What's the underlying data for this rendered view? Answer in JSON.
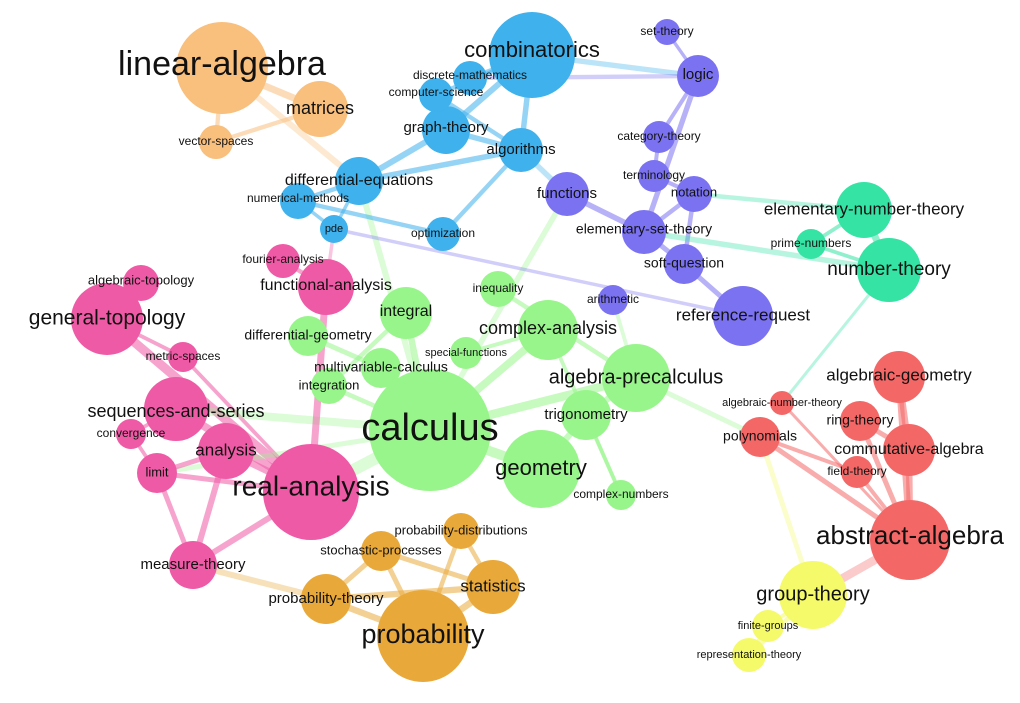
{
  "clusters": [
    {
      "id": "linear",
      "color": "#f9bf7d"
    },
    {
      "id": "discrete",
      "color": "#3fb1ec"
    },
    {
      "id": "foundations",
      "color": "#7b72f2"
    },
    {
      "id": "numbertheory",
      "color": "#35e3a5"
    },
    {
      "id": "analysis",
      "color": "#ef5aa6"
    },
    {
      "id": "calculus",
      "color": "#98f58b"
    },
    {
      "id": "algebra",
      "color": "#f46767"
    },
    {
      "id": "probability",
      "color": "#e9a93a"
    },
    {
      "id": "grouptheory",
      "color": "#f4fa6a"
    }
  ],
  "nodes": [
    {
      "id": "linear-algebra",
      "label": "linear-algebra",
      "cluster": "linear"
    },
    {
      "id": "matrices",
      "label": "matrices",
      "cluster": "linear"
    },
    {
      "id": "vector-spaces",
      "label": "vector-spaces",
      "cluster": "linear"
    },
    {
      "id": "combinatorics",
      "label": "combinatorics",
      "cluster": "discrete"
    },
    {
      "id": "discrete-mathematics",
      "label": "discrete-mathematics",
      "cluster": "discrete"
    },
    {
      "id": "computer-science",
      "label": "computer-science",
      "cluster": "discrete"
    },
    {
      "id": "graph-theory",
      "label": "graph-theory",
      "cluster": "discrete"
    },
    {
      "id": "algorithms",
      "label": "algorithms",
      "cluster": "discrete"
    },
    {
      "id": "differential-equations",
      "label": "differential-equations",
      "cluster": "discrete"
    },
    {
      "id": "numerical-methods",
      "label": "numerical-methods",
      "cluster": "discrete"
    },
    {
      "id": "pde",
      "label": "pde",
      "cluster": "discrete"
    },
    {
      "id": "optimization",
      "label": "optimization",
      "cluster": "discrete"
    },
    {
      "id": "set-theory",
      "label": "set-theory",
      "cluster": "foundations"
    },
    {
      "id": "logic",
      "label": "logic",
      "cluster": "foundations"
    },
    {
      "id": "category-theory",
      "label": "category-theory",
      "cluster": "foundations"
    },
    {
      "id": "terminology",
      "label": "terminology",
      "cluster": "foundations"
    },
    {
      "id": "notation",
      "label": "notation",
      "cluster": "foundations"
    },
    {
      "id": "functions",
      "label": "functions",
      "cluster": "foundations"
    },
    {
      "id": "elementary-set-theory",
      "label": "elementary-set-theory",
      "cluster": "foundations"
    },
    {
      "id": "soft-question",
      "label": "soft-question",
      "cluster": "foundations"
    },
    {
      "id": "arithmetic",
      "label": "arithmetic",
      "cluster": "foundations"
    },
    {
      "id": "reference-request",
      "label": "reference-request",
      "cluster": "foundations"
    },
    {
      "id": "elementary-number-theory",
      "label": "elementary-number-theory",
      "cluster": "numbertheory"
    },
    {
      "id": "prime-numbers",
      "label": "prime-numbers",
      "cluster": "numbertheory"
    },
    {
      "id": "number-theory",
      "label": "number-theory",
      "cluster": "numbertheory"
    },
    {
      "id": "algebraic-topology",
      "label": "algebraic-topology",
      "cluster": "analysis"
    },
    {
      "id": "general-topology",
      "label": "general-topology",
      "cluster": "analysis"
    },
    {
      "id": "fourier-analysis",
      "label": "fourier-analysis",
      "cluster": "analysis"
    },
    {
      "id": "functional-analysis",
      "label": "functional-analysis",
      "cluster": "analysis"
    },
    {
      "id": "metric-spaces",
      "label": "metric-spaces",
      "cluster": "analysis"
    },
    {
      "id": "sequences-and-series",
      "label": "sequences-and-series",
      "cluster": "analysis"
    },
    {
      "id": "convergence",
      "label": "convergence",
      "cluster": "analysis"
    },
    {
      "id": "analysis",
      "label": "analysis",
      "cluster": "analysis"
    },
    {
      "id": "limit",
      "label": "limit",
      "cluster": "analysis"
    },
    {
      "id": "real-analysis",
      "label": "real-analysis",
      "cluster": "analysis"
    },
    {
      "id": "measure-theory",
      "label": "measure-theory",
      "cluster": "analysis"
    },
    {
      "id": "integral",
      "label": "integral",
      "cluster": "calculus"
    },
    {
      "id": "differential-geometry",
      "label": "differential-geometry",
      "cluster": "calculus"
    },
    {
      "id": "inequality",
      "label": "inequality",
      "cluster": "calculus"
    },
    {
      "id": "complex-analysis",
      "label": "complex-analysis",
      "cluster": "calculus"
    },
    {
      "id": "special-functions",
      "label": "special-functions",
      "cluster": "calculus"
    },
    {
      "id": "multivariable-calculus",
      "label": "multivariable-calculus",
      "cluster": "calculus"
    },
    {
      "id": "integration",
      "label": "integration",
      "cluster": "calculus"
    },
    {
      "id": "calculus",
      "label": "calculus",
      "cluster": "calculus"
    },
    {
      "id": "algebra-precalculus",
      "label": "algebra-precalculus",
      "cluster": "calculus"
    },
    {
      "id": "trigonometry",
      "label": "trigonometry",
      "cluster": "calculus"
    },
    {
      "id": "geometry",
      "label": "geometry",
      "cluster": "calculus"
    },
    {
      "id": "complex-numbers",
      "label": "complex-numbers",
      "cluster": "calculus"
    },
    {
      "id": "algebraic-geometry",
      "label": "algebraic-geometry",
      "cluster": "algebra"
    },
    {
      "id": "algebraic-number-theory",
      "label": "algebraic-number-theory",
      "cluster": "algebra"
    },
    {
      "id": "ring-theory",
      "label": "ring-theory",
      "cluster": "algebra"
    },
    {
      "id": "polynomials",
      "label": "polynomials",
      "cluster": "algebra"
    },
    {
      "id": "commutative-algebra",
      "label": "commutative-algebra",
      "cluster": "algebra"
    },
    {
      "id": "field-theory",
      "label": "field-theory",
      "cluster": "algebra"
    },
    {
      "id": "abstract-algebra",
      "label": "abstract-algebra",
      "cluster": "algebra"
    },
    {
      "id": "probability-distributions",
      "label": "probability-distributions",
      "cluster": "probability"
    },
    {
      "id": "stochastic-processes",
      "label": "stochastic-processes",
      "cluster": "probability"
    },
    {
      "id": "statistics",
      "label": "statistics",
      "cluster": "probability"
    },
    {
      "id": "probability-theory",
      "label": "probability-theory",
      "cluster": "probability"
    },
    {
      "id": "probability",
      "label": "probability",
      "cluster": "probability"
    },
    {
      "id": "group-theory",
      "label": "group-theory",
      "cluster": "grouptheory"
    },
    {
      "id": "finite-groups",
      "label": "finite-groups",
      "cluster": "grouptheory"
    },
    {
      "id": "representation-theory",
      "label": "representation-theory",
      "cluster": "grouptheory"
    }
  ],
  "edges": [
    [
      "linear-algebra",
      "matrices"
    ],
    [
      "matrices",
      "vector-spaces"
    ],
    [
      "linear-algebra",
      "vector-spaces"
    ],
    [
      "linear-algebra",
      "differential-equations"
    ],
    [
      "combinatorics",
      "discrete-mathematics"
    ],
    [
      "combinatorics",
      "computer-science"
    ],
    [
      "combinatorics",
      "graph-theory"
    ],
    [
      "combinatorics",
      "algorithms"
    ],
    [
      "combinatorics",
      "logic"
    ],
    [
      "discrete-mathematics",
      "logic"
    ],
    [
      "graph-theory",
      "algorithms"
    ],
    [
      "computer-science",
      "algorithms"
    ],
    [
      "algorithms",
      "functions"
    ],
    [
      "algorithms",
      "optimization"
    ],
    [
      "graph-theory",
      "differential-equations"
    ],
    [
      "differential-equations",
      "numerical-methods"
    ],
    [
      "differential-equations",
      "pde"
    ],
    [
      "numerical-methods",
      "pde"
    ],
    [
      "differential-equations",
      "calculus"
    ],
    [
      "numerical-methods",
      "optimization"
    ],
    [
      "pde",
      "functional-analysis"
    ],
    [
      "differential-equations",
      "algorithms"
    ],
    [
      "set-theory",
      "logic"
    ],
    [
      "logic",
      "category-theory"
    ],
    [
      "logic",
      "elementary-set-theory"
    ],
    [
      "category-theory",
      "terminology"
    ],
    [
      "terminology",
      "notation"
    ],
    [
      "notation",
      "elementary-set-theory"
    ],
    [
      "functions",
      "elementary-set-theory"
    ],
    [
      "elementary-set-theory",
      "soft-question"
    ],
    [
      "soft-question",
      "reference-request"
    ],
    [
      "notation",
      "soft-question"
    ],
    [
      "functions",
      "calculus"
    ],
    [
      "arithmetic",
      "algebra-precalculus"
    ],
    [
      "reference-request",
      "pde"
    ],
    [
      "notation",
      "elementary-number-theory"
    ],
    [
      "elementary-set-theory",
      "number-theory"
    ],
    [
      "elementary-number-theory",
      "prime-numbers"
    ],
    [
      "elementary-number-theory",
      "number-theory"
    ],
    [
      "prime-numbers",
      "number-theory"
    ],
    [
      "number-theory",
      "algebraic-number-theory"
    ],
    [
      "algebraic-topology",
      "general-topology"
    ],
    [
      "general-topology",
      "metric-spaces"
    ],
    [
      "general-topology",
      "real-analysis"
    ],
    [
      "metric-spaces",
      "real-analysis"
    ],
    [
      "sequences-and-series",
      "convergence"
    ],
    [
      "sequences-and-series",
      "real-analysis"
    ],
    [
      "sequences-and-series",
      "calculus"
    ],
    [
      "analysis",
      "real-analysis"
    ],
    [
      "limit",
      "real-analysis"
    ],
    [
      "limit",
      "calculus"
    ],
    [
      "real-analysis",
      "measure-theory"
    ],
    [
      "measure-theory",
      "probability-theory"
    ],
    [
      "real-analysis",
      "calculus"
    ],
    [
      "functional-analysis",
      "real-analysis"
    ],
    [
      "fourier-analysis",
      "functional-analysis"
    ],
    [
      "convergence",
      "limit"
    ],
    [
      "analysis",
      "limit"
    ],
    [
      "measure-theory",
      "limit"
    ],
    [
      "analysis",
      "measure-theory"
    ],
    [
      "integral",
      "calculus"
    ],
    [
      "integral",
      "integration"
    ],
    [
      "integration",
      "calculus"
    ],
    [
      "multivariable-calculus",
      "calculus"
    ],
    [
      "complex-analysis",
      "calculus"
    ],
    [
      "algebra-precalculus",
      "calculus"
    ],
    [
      "trigonometry",
      "algebra-precalculus"
    ],
    [
      "geometry",
      "trigonometry"
    ],
    [
      "complex-numbers",
      "complex-analysis"
    ],
    [
      "complex-numbers",
      "trigonometry"
    ],
    [
      "inequality",
      "algebra-precalculus"
    ],
    [
      "special-functions",
      "complex-analysis"
    ],
    [
      "differential-geometry",
      "multivariable-calculus"
    ],
    [
      "geometry",
      "calculus"
    ],
    [
      "polynomials",
      "algebra-precalculus"
    ],
    [
      "polynomials",
      "abstract-algebra"
    ],
    [
      "algebraic-geometry",
      "commutative-algebra"
    ],
    [
      "ring-theory",
      "abstract-algebra"
    ],
    [
      "commutative-algebra",
      "abstract-algebra"
    ],
    [
      "field-theory",
      "abstract-algebra"
    ],
    [
      "algebraic-number-theory",
      "abstract-algebra"
    ],
    [
      "algebraic-geometry",
      "abstract-algebra"
    ],
    [
      "polynomials",
      "field-theory"
    ],
    [
      "ring-theory",
      "commutative-algebra"
    ],
    [
      "abstract-algebra",
      "group-theory"
    ],
    [
      "group-theory",
      "finite-groups"
    ],
    [
      "group-theory",
      "representation-theory"
    ],
    [
      "finite-groups",
      "representation-theory"
    ],
    [
      "polynomials",
      "group-theory"
    ],
    [
      "probability-theory",
      "probability"
    ],
    [
      "statistics",
      "probability"
    ],
    [
      "probability-distributions",
      "statistics"
    ],
    [
      "stochastic-processes",
      "probability-theory"
    ],
    [
      "probability-distributions",
      "probability"
    ],
    [
      "stochastic-processes",
      "statistics"
    ],
    [
      "probability-theory",
      "statistics"
    ],
    [
      "stochastic-processes",
      "probability"
    ]
  ]
}
